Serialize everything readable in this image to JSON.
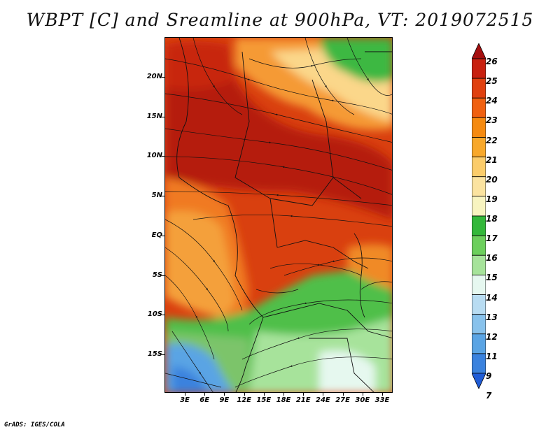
{
  "title": "WBPT [C] and Sreamline at 900hPa, VT: 2019072515",
  "credit": "GrADS: IGES/COLA",
  "map": {
    "variable": "Wet-bulb potential temperature",
    "level": "900hPa",
    "lat_labels": [
      "20N",
      "15N",
      "10N",
      "5N",
      "EQ",
      "5S",
      "10S",
      "15S"
    ],
    "lon_labels": [
      "3E",
      "6E",
      "9E",
      "12E",
      "15E",
      "18E",
      "21E",
      "24E",
      "27E",
      "30E",
      "33E"
    ]
  },
  "colorbar": {
    "labels": [
      "26",
      "25",
      "24",
      "23",
      "22",
      "21",
      "20",
      "19",
      "18",
      "17",
      "16",
      "15",
      "14",
      "13",
      "12",
      "11",
      "9",
      "7"
    ],
    "colors": [
      "#a50f0f",
      "#c8200f",
      "#e0400f",
      "#f06010",
      "#f58a10",
      "#f8a82a",
      "#fbcc6a",
      "#fbe3a0",
      "#f8f4c0",
      "#33b83a",
      "#6ccf5c",
      "#a6e39a",
      "#e6f8f0",
      "#b8dcf2",
      "#88c2ec",
      "#5aa4e4",
      "#3a82de",
      "#1f5cd6"
    ]
  }
}
